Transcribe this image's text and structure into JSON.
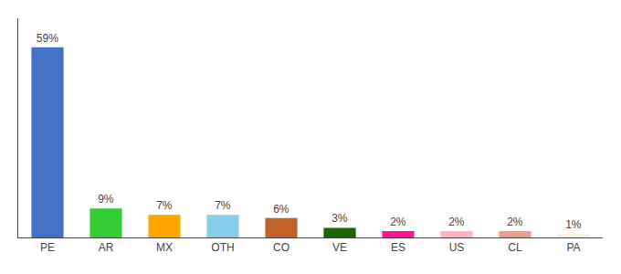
{
  "chart_data": {
    "type": "bar",
    "categories": [
      "PE",
      "AR",
      "MX",
      "OTH",
      "CO",
      "VE",
      "ES",
      "US",
      "CL",
      "PA"
    ],
    "values": [
      59,
      9,
      7,
      7,
      6,
      3,
      2,
      2,
      2,
      1
    ],
    "value_labels": [
      "59%",
      "9%",
      "7%",
      "7%",
      "6%",
      "3%",
      "2%",
      "2%",
      "2%",
      "1%"
    ],
    "data_labels": true,
    "colors": [
      "#4472c4",
      "#33cc33",
      "#ffa500",
      "#87ceeb",
      "#c0622a",
      "#1a6600",
      "#ff1493",
      "#ffb6c1",
      "#e8a090",
      "#f5f0dc"
    ],
    "ylim": [
      0,
      68
    ],
    "grid": false,
    "tick_labels": "x"
  }
}
